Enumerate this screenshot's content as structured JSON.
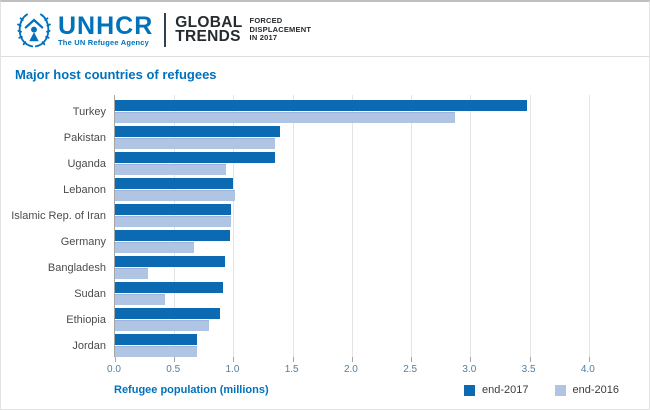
{
  "header": {
    "logo": {
      "name": "UNHCR",
      "tagline": "The UN Refugee Agency",
      "emblem_icon": "unhcr-wreath-person-emblem"
    },
    "report": {
      "title_lines": [
        "GLOBAL",
        "TRENDS"
      ],
      "subtitle_lines": [
        "FORCED",
        "DISPLACEMENT",
        "IN 2017"
      ]
    }
  },
  "title": "Major host countries of refugees",
  "chart_data": {
    "type": "bar",
    "orientation": "horizontal",
    "title": "Major host countries of refugees",
    "categories": [
      "Turkey",
      "Pakistan",
      "Uganda",
      "Lebanon",
      "Islamic Rep. of Iran",
      "Germany",
      "Bangladesh",
      "Sudan",
      "Ethiopia",
      "Jordan"
    ],
    "series": [
      {
        "name": "end-2017",
        "color": "#0b6ab1",
        "values": [
          3.48,
          1.39,
          1.35,
          1.0,
          0.98,
          0.97,
          0.93,
          0.91,
          0.89,
          0.69
        ]
      },
      {
        "name": "end-2016",
        "color": "#b0c4e4",
        "values": [
          2.87,
          1.35,
          0.94,
          1.01,
          0.98,
          0.67,
          0.28,
          0.42,
          0.79,
          0.69
        ]
      }
    ],
    "xlabel": "Refugee population (millions)",
    "xlim": [
      0,
      4.28
    ],
    "xticks": [
      0.0,
      0.5,
      1.0,
      1.5,
      2.0,
      2.5,
      3.0,
      3.5,
      4.0
    ],
    "tick_labels": [
      "0.0",
      "0.5",
      "1.0",
      "1.5",
      "2.0",
      "2.5",
      "3.0",
      "3.5",
      "4.0"
    ],
    "grid": true,
    "legend_position": "bottom-right"
  },
  "colors": {
    "brand_blue": "#0072bc",
    "bar_end_2017": "#0b6ab1",
    "bar_end_2016": "#b0c4e4",
    "tick_label": "#517e9d",
    "header_text": "#262b2f"
  }
}
